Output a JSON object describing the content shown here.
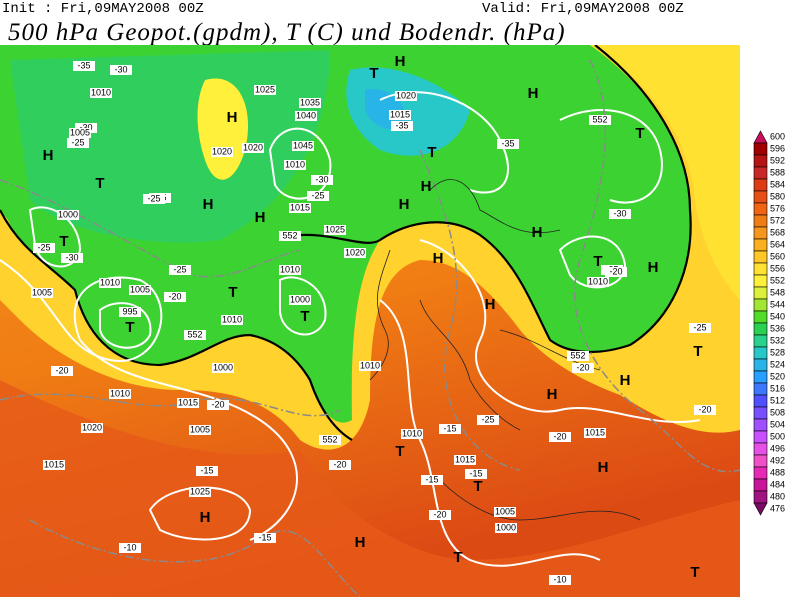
{
  "header": {
    "init": "Init : Fri,09MAY2008 00Z",
    "valid": "Valid: Fri,09MAY2008 00Z",
    "title": "500 hPa Geopot.(gpdm), T (C) und Bodendr. (hPa)"
  },
  "colorbar": {
    "labels": [
      600,
      596,
      592,
      588,
      584,
      580,
      576,
      572,
      568,
      564,
      560,
      556,
      552,
      548,
      544,
      540,
      536,
      532,
      528,
      524,
      520,
      516,
      512,
      508,
      504,
      500,
      496,
      492,
      488,
      484,
      480,
      476
    ],
    "colors": [
      "#c8105a",
      "#a00000",
      "#b41414",
      "#c82828",
      "#dc3c14",
      "#e65014",
      "#f06414",
      "#f07d14",
      "#f5961e",
      "#faaf1e",
      "#ffc828",
      "#ffe132",
      "#fff03c",
      "#dcf03c",
      "#a0e632",
      "#50dc28",
      "#28d250",
      "#28d28c",
      "#28c8c8",
      "#28b4e6",
      "#28a0ff",
      "#3c78ff",
      "#5050ff",
      "#7850ff",
      "#a050ff",
      "#c850ff",
      "#e650e6",
      "#f050c8",
      "#e628b4",
      "#c8149b",
      "#a01482",
      "#780a64"
    ]
  },
  "map": {
    "centers": [
      "T",
      "H",
      "H",
      "T",
      "H",
      "T",
      "H",
      "H",
      "H",
      "T",
      "H",
      "H",
      "T",
      "T",
      "T",
      "T",
      "H",
      "H",
      "H",
      "T",
      "H",
      "H",
      "H",
      "T",
      "T",
      "H",
      "T",
      "H",
      "H",
      "T",
      "T"
    ],
    "labels": [
      "-35",
      "-30",
      "1010",
      "-30",
      "1005",
      "-25",
      "-25",
      "1025",
      "1035",
      "1040",
      "1045",
      "1020",
      "1010",
      "1020",
      "1015",
      "-35",
      "-35",
      "1020",
      "-30",
      "-25",
      "1000",
      "-30",
      "-25",
      "-25",
      "1015",
      "1025",
      "1020",
      "1010",
      "1000",
      "995",
      "1005",
      "-25",
      "-20",
      "1010",
      "1000",
      "-20",
      "-20",
      "1005",
      "1015",
      "-15",
      "1020",
      "1015",
      "-20",
      "1010",
      "1025",
      "-15",
      "-10",
      "-15",
      "-20",
      "-25",
      "1010",
      "-15",
      "1015",
      "-20",
      "1015",
      "1010",
      "-15",
      "1005",
      "1000",
      "-10",
      "-20",
      "-20",
      "-25",
      "-30",
      "1010",
      "-25",
      "-20",
      "1005",
      "1010",
      "552",
      "552",
      "552",
      "552",
      "552"
    ]
  }
}
